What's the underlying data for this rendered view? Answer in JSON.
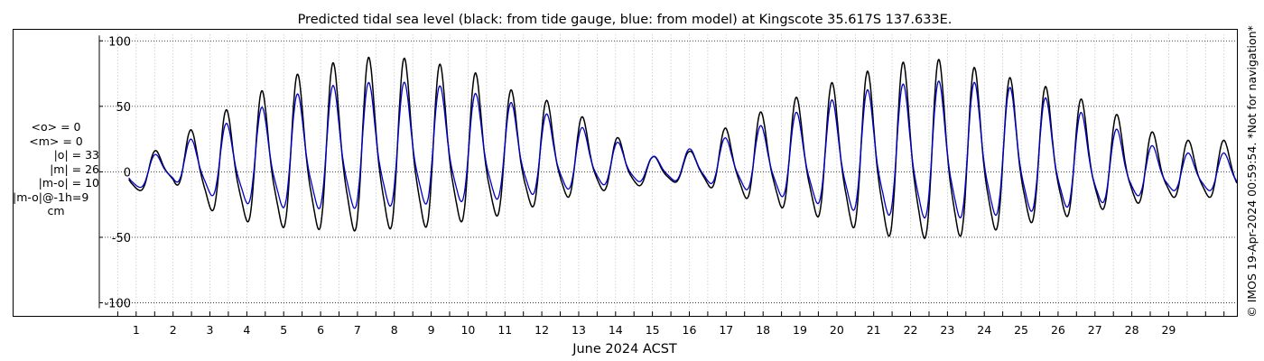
{
  "chart_data": {
    "type": "line",
    "title": "Predicted tidal sea level (black: from tide gauge, blue: from model) at Kingscote 35.617S 137.633E.",
    "xlabel": "June 2024 ACST",
    "ylabel": "",
    "xlim": [
      0.0,
      30.85
    ],
    "ylim": [
      -110,
      105
    ],
    "yticks": [
      -100,
      -50,
      0,
      50,
      100
    ],
    "ytick_labels": [
      "-100",
      "-50",
      "0",
      "50",
      "100"
    ],
    "xticks": [
      1,
      2,
      3,
      4,
      5,
      6,
      7,
      8,
      9,
      10,
      11,
      12,
      13,
      14,
      15,
      16,
      17,
      18,
      19,
      20,
      21,
      22,
      23,
      24,
      25,
      26,
      27,
      28,
      29
    ],
    "xtick_labels": [
      "1",
      "2",
      "3",
      "4",
      "5",
      "6",
      "7",
      "8",
      "9",
      "10",
      "11",
      "12",
      "13",
      "14",
      "15",
      "16",
      "17",
      "18",
      "19",
      "20",
      "21",
      "22",
      "23",
      "24",
      "25",
      "26",
      "27",
      "28",
      "29"
    ],
    "grid": true,
    "series": [
      {
        "color": "#000000",
        "daily_max": [
          8,
          25,
          42,
          58,
          73,
          84,
          90,
          91,
          86,
          81,
          66,
          58,
          45,
          28,
          12,
          16,
          35,
          48,
          60,
          72,
          81,
          88,
          89,
          80,
          72,
          65,
          53,
          40,
          25
        ],
        "daily_min": [
          -18,
          -12,
          -38,
          -50,
          -57,
          -60,
          -62,
          -60,
          -58,
          -52,
          -45,
          -35,
          -25,
          -18,
          -12,
          -10,
          -22,
          -33,
          -42,
          -52,
          -64,
          -68,
          -68,
          -62,
          -54,
          -48,
          -40,
          -33,
          -25
        ]
      },
      {
        "color": "#0000c8",
        "daily_max": [
          7,
          20,
          32,
          46,
          58,
          67,
          70,
          71,
          69,
          63,
          56,
          47,
          36,
          24,
          12,
          18,
          27,
          37,
          48,
          58,
          66,
          70,
          72,
          70,
          65,
          55,
          42,
          28,
          15
        ],
        "daily_min": [
          -15,
          -10,
          -24,
          -33,
          -38,
          -40,
          -40,
          -38,
          -36,
          -33,
          -30,
          -24,
          -18,
          -13,
          -9,
          -10,
          -15,
          -23,
          -30,
          -38,
          -44,
          -48,
          -49,
          -47,
          -43,
          -38,
          -33,
          -25,
          -18
        ]
      }
    ],
    "stats": {
      "mean_obs": "<o> = 0",
      "mean_model": "<m> = 0",
      "abs_obs": "|o| = 33",
      "abs_model": "|m| = 26",
      "abs_diff": "|m-o| = 10",
      "abs_diff_lag": "|m-o|@-1h=9",
      "unit": "cm"
    },
    "credit": "© IMOS 19-Apr-2024 00:59:54. *Not for navigation*"
  }
}
